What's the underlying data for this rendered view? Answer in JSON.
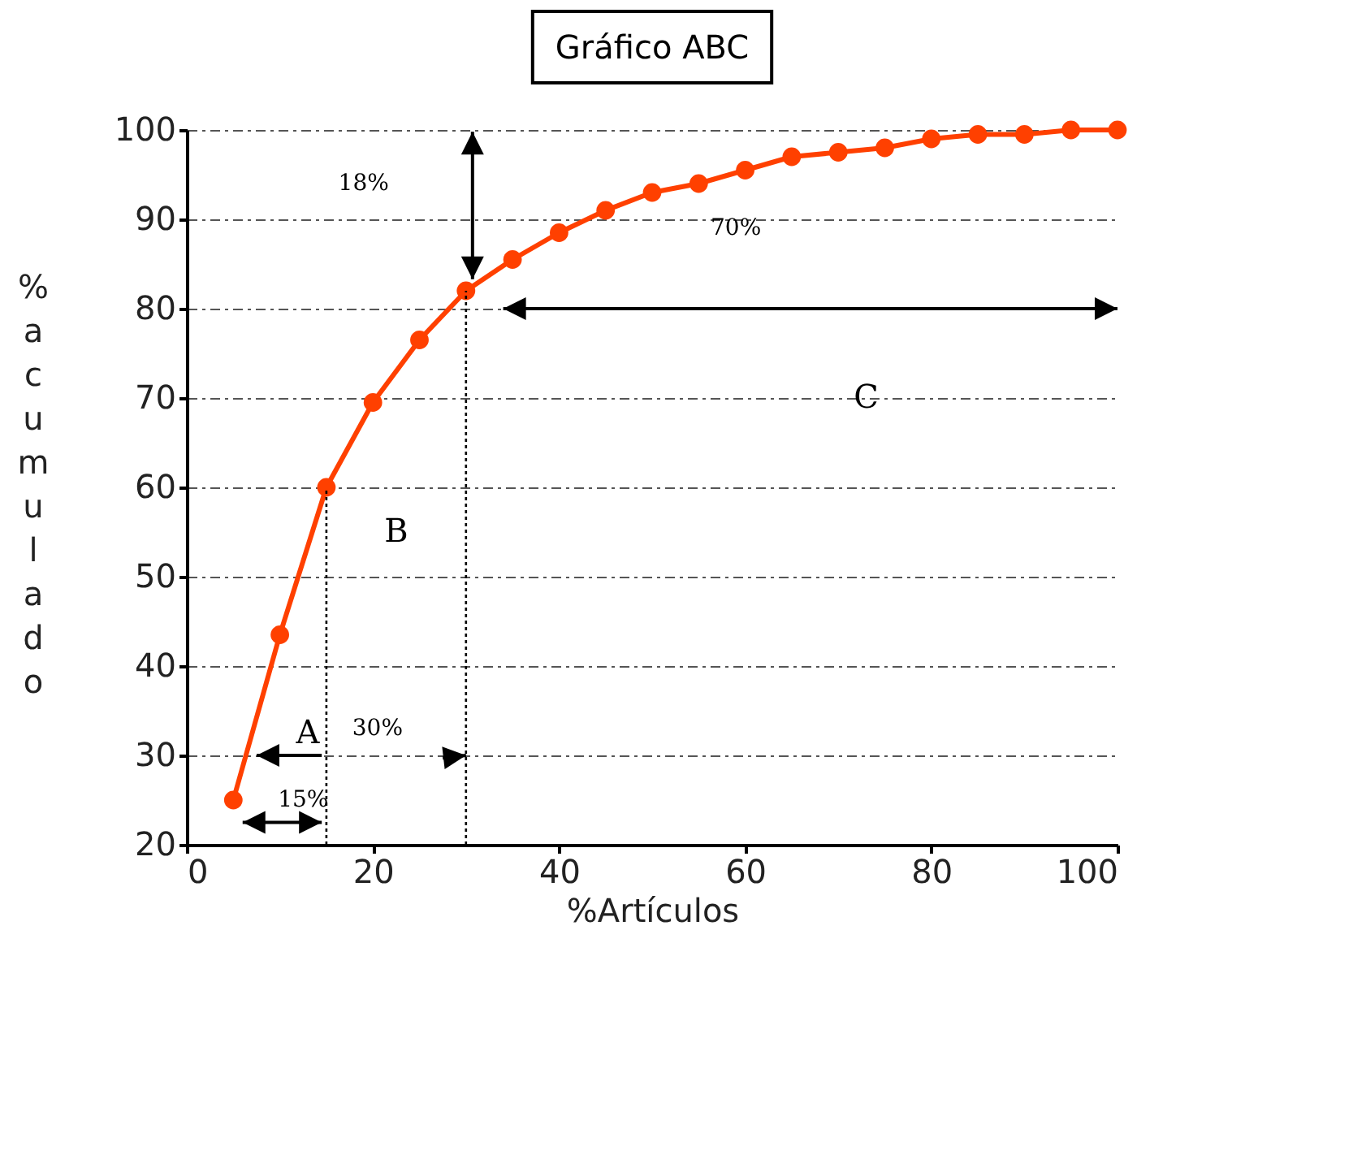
{
  "chart_data": {
    "type": "line",
    "title": "Gráfico ABC",
    "xlabel": "%Artículos",
    "ylabel": "% acumulado",
    "x": [
      5,
      10,
      15,
      20,
      25,
      30,
      35,
      40,
      45,
      50,
      55,
      60,
      65,
      70,
      75,
      80,
      85,
      90,
      95,
      100
    ],
    "series": [
      {
        "color": "#ff4000",
        "values": [
          25,
          43.5,
          60,
          69.5,
          76.5,
          82,
          85.5,
          88.5,
          91,
          93,
          94,
          95.5,
          97,
          97.5,
          98,
          99,
          99.5,
          99.5,
          100,
          100
        ]
      }
    ],
    "xlim": [
      0,
      100
    ],
    "xticks": [
      0,
      20,
      40,
      60,
      80,
      100
    ],
    "ylim": [
      20,
      100
    ],
    "yticks": [
      20,
      30,
      40,
      50,
      60,
      70,
      80,
      90,
      100
    ],
    "grid": "y",
    "marker": "circle",
    "line_style": "solid",
    "ref_lines": [
      {
        "axis": "x",
        "value": 15,
        "line_style": "dotted"
      },
      {
        "axis": "x",
        "value": 30,
        "line_style": "dotted"
      }
    ],
    "annotations": [
      "18%",
      "70%",
      "C",
      "B",
      "A",
      "30%",
      "15%"
    ]
  }
}
